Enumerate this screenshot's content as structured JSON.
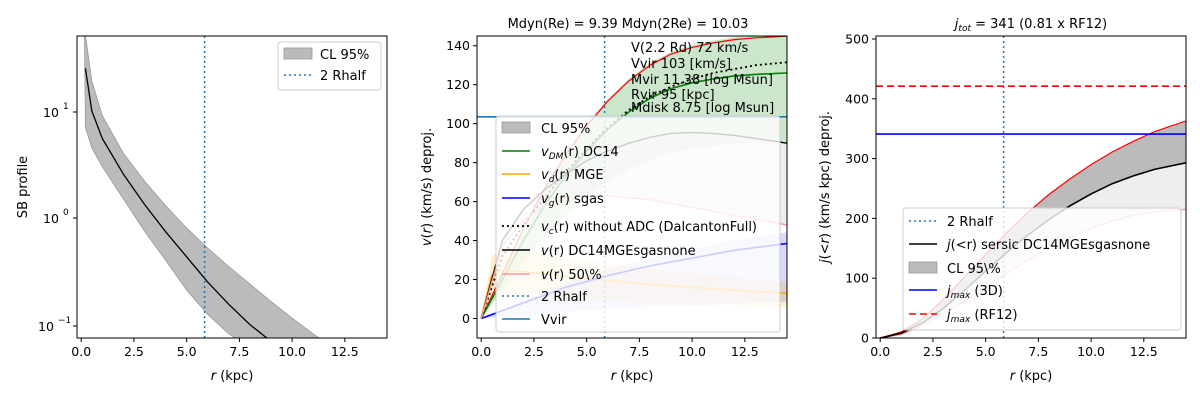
{
  "chart_data": [
    {
      "type": "line",
      "panel": "surface-brightness",
      "title": "",
      "xlabel": "r (kpc)",
      "ylabel": "SB profile",
      "yscale": "log",
      "xlim": [
        -0.2,
        14.5
      ],
      "ylim": [
        0.075,
        50
      ],
      "xticks": [
        0.0,
        2.5,
        5.0,
        7.5,
        10.0,
        12.5
      ],
      "xtick_labels": [
        "0.0",
        "2.5",
        "5.0",
        "7.5",
        "10.0",
        "12.5"
      ],
      "ytick_labels": [
        "10^-1",
        "10^0",
        "10^1"
      ],
      "legend_position": "top-right",
      "legend": [
        "CL 95%",
        "2 Rhalf"
      ],
      "vline_2rhalf": 5.85,
      "series": [
        {
          "name": "SB profile",
          "color": "#000000",
          "x": [
            0.2,
            0.5,
            1,
            2,
            3,
            4,
            5,
            6,
            7,
            8,
            8.8
          ],
          "y": [
            25,
            10,
            5.5,
            2.55,
            1.33,
            0.74,
            0.43,
            0.25,
            0.155,
            0.1,
            0.075
          ]
        },
        {
          "name": "CL 95% upper",
          "color": "#bbbbbb",
          "x": [
            0.15,
            0.5,
            1,
            2,
            3,
            4,
            5,
            6,
            7,
            8,
            9,
            10,
            11,
            11.3
          ],
          "y": [
            60,
            19,
            9,
            4.0,
            2.2,
            1.3,
            0.8,
            0.52,
            0.35,
            0.24,
            0.165,
            0.115,
            0.082,
            0.075
          ]
        },
        {
          "name": "CL 95% lower",
          "color": "#bbbbbb",
          "x": [
            0.2,
            0.5,
            1,
            2,
            3,
            4,
            5,
            6,
            7,
            7.3
          ],
          "y": [
            7,
            4.5,
            3.0,
            1.5,
            0.75,
            0.4,
            0.21,
            0.125,
            0.082,
            0.075
          ]
        }
      ]
    },
    {
      "type": "line",
      "panel": "rotation-curve",
      "title": "Mdyn(Re) = 9.39  Mdyn(2Re) = 10.03",
      "xlabel": "r (kpc)",
      "ylabel": "v(r) (km/s) deproj.",
      "xlim": [
        -0.2,
        14.5
      ],
      "ylim": [
        -10,
        145
      ],
      "xticks": [
        0.0,
        2.5,
        5.0,
        7.5,
        10.0,
        12.5
      ],
      "xtick_labels": [
        "0.0",
        "2.5",
        "5.0",
        "7.5",
        "10.0",
        "12.5"
      ],
      "yticks": [
        0,
        20,
        40,
        60,
        80,
        100,
        120,
        140
      ],
      "ytick_labels": [
        "0",
        "20",
        "40",
        "60",
        "80",
        "100",
        "120",
        "140"
      ],
      "legend_position": "lower-center",
      "legend": [
        "CL 95%",
        "v_DM(r) DC14",
        "v_d(r) MGE",
        "v_g(r) sgas",
        "v_c(r) without ADC (DalcantonFull)",
        "v(r) DC14MGEsgasnone",
        "v(r) 50\\%",
        "2 Rhalf",
        "Vvir"
      ],
      "annotations": [
        "V(2.2 Rd) 72 km/s",
        "Vvir 103 [km/s]",
        "Mvir 11.38 [log Msun]",
        "Rvir 95 [kpc]",
        "Mdisk 8.75 [log Msun]"
      ],
      "vline_2rhalf": 5.85,
      "hline_vvir": 103.5,
      "series": [
        {
          "name": "v_DM(r) DC14",
          "color": "#008000",
          "x": [
            0,
            1,
            2,
            3,
            4,
            5,
            6,
            7,
            8,
            9,
            10,
            11,
            12,
            13,
            14.5
          ],
          "y": [
            0,
            20,
            40,
            58,
            73,
            86,
            97,
            106,
            113,
            118,
            121,
            123,
            124.5,
            125.3,
            126
          ]
        },
        {
          "name": "v_d(r) MGE",
          "color": "#ffa500",
          "x": [
            0,
            0.5,
            1,
            2,
            3,
            4,
            6,
            8,
            10,
            12,
            14.5
          ],
          "y": [
            0,
            22,
            25,
            24,
            23,
            21.5,
            19.5,
            17.5,
            16,
            14.5,
            13
          ]
        },
        {
          "name": "v_g(r) sgas",
          "color": "#0000ff",
          "x": [
            0,
            2,
            4,
            6,
            8,
            10,
            12,
            14.5
          ],
          "y": [
            0,
            8,
            16,
            22,
            27,
            31,
            35,
            38.5
          ]
        },
        {
          "name": "v_c(r) without ADC (DalcantonFull)",
          "color": "#000000",
          "x": [
            0,
            1,
            2,
            3,
            4,
            5,
            6,
            7,
            8,
            9,
            10,
            11,
            12,
            13,
            14.5
          ],
          "y": [
            0,
            32,
            48,
            62,
            75,
            87,
            98,
            107,
            114,
            119,
            123,
            126,
            128,
            130,
            131.5
          ]
        },
        {
          "name": "v(r) DC14MGEsgasnone",
          "color": "#000000",
          "x": [
            0,
            1,
            2,
            3,
            4,
            5,
            6,
            7,
            8,
            9,
            10,
            11,
            12,
            13,
            14.5
          ],
          "y": [
            0,
            40,
            56,
            66,
            74,
            81,
            86,
            90,
            93,
            95,
            95.5,
            95,
            94,
            92.5,
            90
          ]
        },
        {
          "name": "v(r) 50\\%",
          "color": "#ff9999",
          "x": [
            0,
            1,
            2,
            3,
            4,
            5,
            6,
            7,
            8,
            9,
            10,
            11,
            12,
            13,
            14.5
          ],
          "y": [
            0,
            37,
            50,
            58,
            62,
            63,
            63,
            62,
            61,
            59,
            57,
            55,
            53,
            51,
            48
          ]
        }
      ]
    },
    {
      "type": "line",
      "panel": "angular-momentum",
      "title": "j_tot = 341 (0.81 x RF12)",
      "xlabel": "r (kpc)",
      "ylabel": "j(<r) (km/s kpc) deproj.",
      "xlim": [
        -0.2,
        14.5
      ],
      "ylim": [
        0,
        505
      ],
      "xticks": [
        0.0,
        2.5,
        5.0,
        7.5,
        10.0,
        12.5
      ],
      "xtick_labels": [
        "0.0",
        "2.5",
        "5.0",
        "7.5",
        "10.0",
        "12.5"
      ],
      "yticks": [
        0,
        100,
        200,
        300,
        400,
        500
      ],
      "ytick_labels": [
        "0",
        "100",
        "200",
        "300",
        "400",
        "500"
      ],
      "legend_position": "lower-right",
      "legend": [
        "2 Rhalf",
        "j(<r) sersic DC14MGEsgasnone",
        "CL 95\\%",
        "j_max (3D)",
        "j_max (RF12)"
      ],
      "vline_2rhalf": 5.85,
      "hline_jmax_3d": 341,
      "hline_jmax_rf12": 421,
      "series": [
        {
          "name": "j(<r) sersic DC14MGEsgasnone",
          "color": "#000000",
          "x": [
            0,
            1,
            2,
            3,
            4,
            5,
            6,
            7,
            8,
            9,
            10,
            11,
            12,
            13,
            14.5
          ],
          "y": [
            0,
            8,
            25,
            50,
            80,
            112,
            143,
            172,
            198,
            221,
            241,
            258,
            271,
            282,
            293
          ]
        },
        {
          "name": "CL 95% upper",
          "color": "#ff0000",
          "x": [
            0,
            1,
            2,
            3,
            4,
            5,
            6,
            7,
            8,
            9,
            10,
            11,
            12,
            13,
            14.5
          ],
          "y": [
            0,
            10,
            32,
            65,
            102,
            140,
            176,
            210,
            240,
            266,
            290,
            311,
            329,
            345,
            363
          ]
        },
        {
          "name": "CL 95% lower",
          "color": "#ff9999",
          "x": [
            0,
            1,
            2,
            3,
            4,
            5,
            6,
            7,
            8,
            9,
            10,
            11,
            12,
            13,
            14.5
          ],
          "y": [
            0,
            6,
            20,
            40,
            62,
            85,
            108,
            130,
            150,
            168,
            183,
            196,
            205,
            211,
            215
          ]
        }
      ]
    }
  ],
  "panel1": {
    "ylabel": "SB profile",
    "xlabel_prefix": "r",
    "xlabel_suffix": " (kpc)",
    "legend": {
      "cl": "CL 95%",
      "rhalf": "2 Rhalf"
    }
  },
  "panel2": {
    "title": "Mdyn(Re) = 9.39  Mdyn(2Re) = 10.03",
    "ylabel": "v(r) (km/s) deproj.",
    "annotations": [
      "V(2.2 Rd) 72 km/s",
      "Vvir 103 [km/s]",
      "Mvir 11.38 [log Msun]",
      "Rvir 95 [kpc]",
      "Mdisk 8.75 [log Msun]"
    ],
    "legend": {
      "cl": "CL 95%",
      "dm_sub": "DM",
      "dm_rest": "(r) DC14",
      "d_sub": "d",
      "d_rest": "(r) MGE",
      "g_sub": "g",
      "g_rest": "(r) sgas",
      "c_sub": "c",
      "c_rest": "(r) without ADC (DalcantonFull)",
      "tot_rest": "(r) DC14MGEsgasnone",
      "p50_rest": "(r) 50\\%",
      "rhalf": "2 Rhalf",
      "vvir": "Vvir"
    }
  },
  "panel3": {
    "title_j": "j",
    "title_sub": "tot",
    "title_rest": " = 341 (0.81 x RF12)",
    "ylabel": "j(<r) (km/s kpc) deproj.",
    "legend": {
      "rhalf": "2 Rhalf",
      "j_rest": "(<r) sersic DC14MGEsgasnone",
      "cl": "CL 95\\%",
      "max_sub": "max",
      "max3d_rest": " (3D)",
      "maxrf_rest": " (RF12)"
    }
  },
  "colors": {
    "grey_band": "#bbbbbb",
    "green": "#008000",
    "orange": "#ffa500",
    "blue": "#0000ff",
    "red": "#ff0000",
    "pink": "#ff9999",
    "vline": "#1f77b4",
    "vvir": "#1f77b4"
  }
}
